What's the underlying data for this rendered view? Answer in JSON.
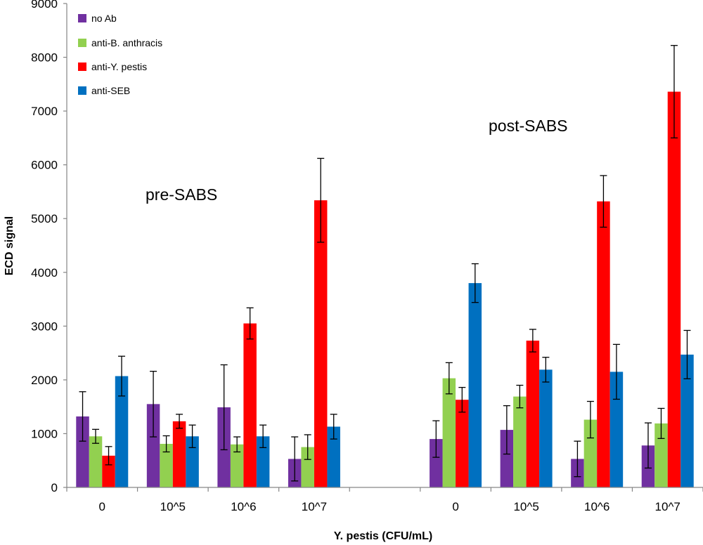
{
  "chart_data": {
    "type": "bar",
    "title": "",
    "xlabel": "Y. pestis (CFU/mL)",
    "ylabel": "ECD signal",
    "ylim": [
      0,
      9000
    ],
    "yticks": [
      0,
      1000,
      2000,
      3000,
      4000,
      5000,
      6000,
      7000,
      8000,
      9000
    ],
    "grid": false,
    "legend_position": "top-left",
    "categories": [
      "0",
      "10^5",
      "10^6",
      "10^7",
      "",
      "0",
      "10^5",
      "10^6",
      "10^7"
    ],
    "series": [
      {
        "name": "no Ab",
        "color": "#7030a0",
        "values": [
          1320,
          1550,
          1490,
          530,
          null,
          900,
          1070,
          530,
          780
        ],
        "errors": [
          460,
          610,
          790,
          410,
          null,
          340,
          450,
          330,
          420
        ]
      },
      {
        "name": "anti-B. anthracis",
        "color": "#92d050",
        "values": [
          950,
          810,
          800,
          750,
          null,
          2030,
          1690,
          1260,
          1190
        ],
        "errors": [
          130,
          150,
          140,
          230,
          null,
          290,
          210,
          340,
          280
        ]
      },
      {
        "name": "anti-Y. pestis",
        "color": "#ff0000",
        "values": [
          590,
          1230,
          3050,
          5340,
          null,
          1630,
          2730,
          5320,
          7360
        ],
        "errors": [
          170,
          130,
          290,
          780,
          null,
          230,
          210,
          480,
          860
        ]
      },
      {
        "name": "anti-SEB",
        "color": "#0070c0",
        "values": [
          2070,
          950,
          950,
          1130,
          null,
          3800,
          2190,
          2150,
          2470
        ],
        "errors": [
          370,
          210,
          210,
          230,
          null,
          360,
          230,
          510,
          450
        ]
      }
    ],
    "annotations": [
      "pre-SABS",
      "post-SABS"
    ]
  }
}
